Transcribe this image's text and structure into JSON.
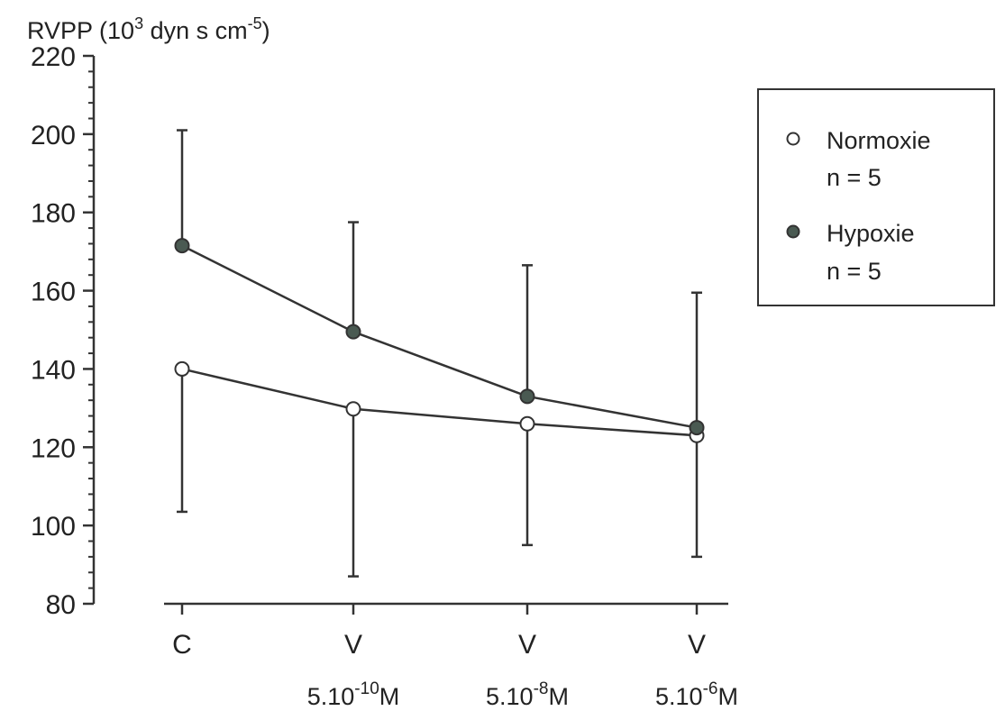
{
  "chart_data": {
    "type": "line",
    "ylabel": {
      "prefix": "RVPP (10",
      "sup1": "3",
      "mid": " dyn s cm",
      "sup2": "-5",
      "suffix": ")"
    },
    "ylim": [
      80,
      220
    ],
    "yticks": [
      80,
      100,
      120,
      140,
      160,
      180,
      200,
      220
    ],
    "categories": [
      "C",
      "V",
      "V",
      "V"
    ],
    "sublabels": [
      null,
      {
        "base": "5.10",
        "exp": "-10",
        "unit": "M"
      },
      {
        "base": "5.10",
        "exp": "-8",
        "unit": "M"
      },
      {
        "base": "5.10",
        "exp": "-6",
        "unit": "M"
      }
    ],
    "series": [
      {
        "name": "Normoxie",
        "n_label": "n = 5",
        "marker": "open-circle",
        "values": [
          140,
          129.8,
          126,
          123
        ],
        "error_low": [
          103.5,
          87,
          95,
          92
        ],
        "error_high": [
          null,
          null,
          null,
          null
        ]
      },
      {
        "name": "Hypoxie",
        "n_label": "n = 5",
        "marker": "filled-circle",
        "values": [
          171.5,
          149.5,
          133,
          125
        ],
        "error_low": [
          null,
          null,
          null,
          null
        ],
        "error_high": [
          201,
          177.5,
          166.5,
          159.5
        ]
      }
    ],
    "grid": false,
    "legend": "top-right",
    "colors": {
      "line": "#333333",
      "hypoxie_fill": "#4a5a52",
      "normoxie_fill": "#ffffff"
    }
  }
}
